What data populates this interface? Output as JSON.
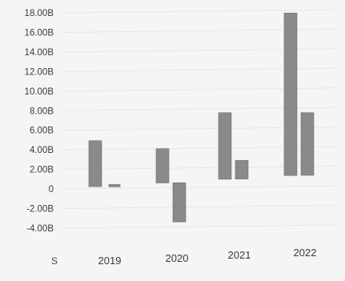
{
  "chart_data": {
    "type": "bar",
    "categories": [
      "2019",
      "2020",
      "2021",
      "2022"
    ],
    "series": [
      {
        "values": [
          4.9,
          4.0,
          7.6,
          17.7
        ],
        "base": [
          0.2,
          0.5,
          0.8,
          1.1
        ],
        "color": "#8a8a88"
      },
      {
        "values": [
          0.4,
          -3.5,
          2.7,
          7.5
        ],
        "base": [
          0.2,
          0.5,
          0.8,
          1.1
        ],
        "color": "#8a8a88"
      }
    ],
    "y_ticks": [
      "18.00B",
      "16.00B",
      "14.00B",
      "12.00B",
      "10.00B",
      "8.00B",
      "6.00B",
      "4.00B",
      "2.00B",
      "0",
      "-2.00B",
      "-4.00B"
    ],
    "y_tick_values": [
      18,
      16,
      14,
      12,
      10,
      8,
      6,
      4,
      2,
      0,
      -2,
      -4
    ],
    "ylim": [
      -4,
      18
    ],
    "corner_label": "S",
    "unit": "B",
    "grid": true,
    "legend": "none"
  }
}
